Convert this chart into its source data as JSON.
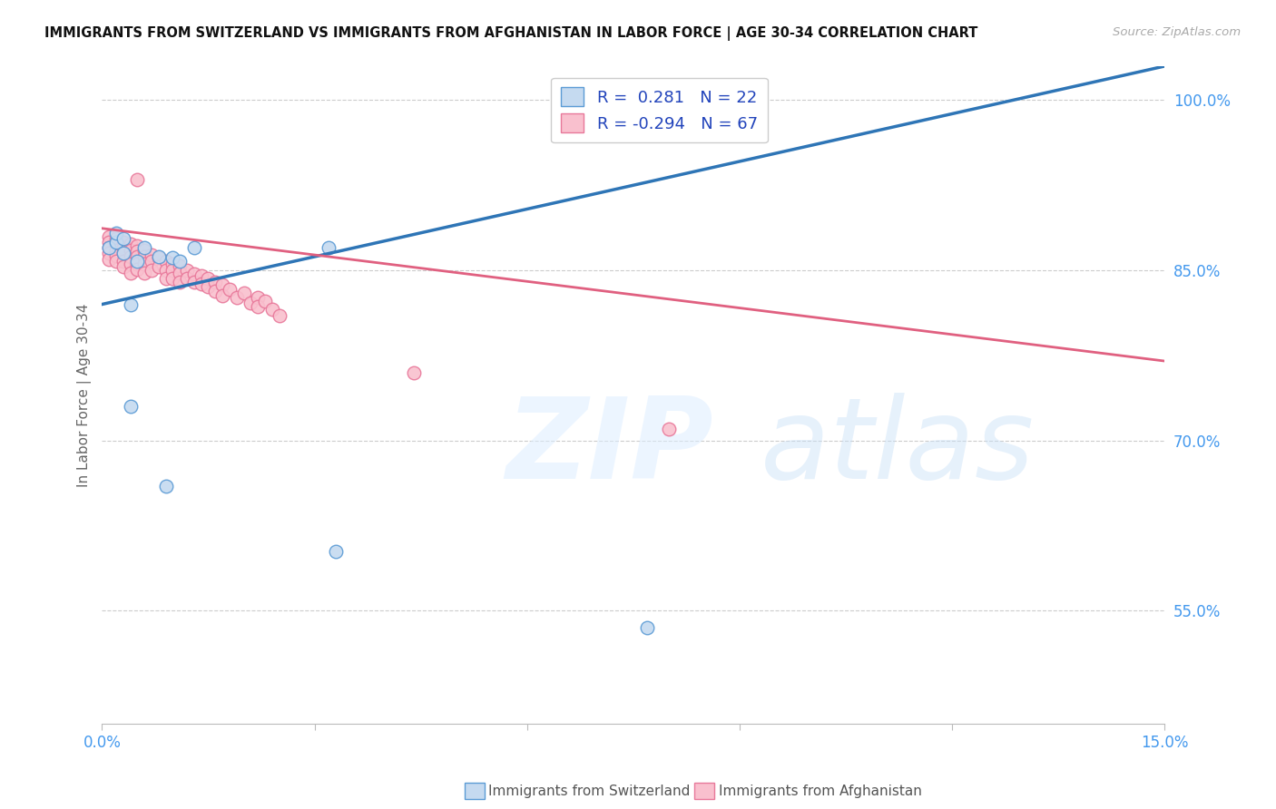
{
  "title": "IMMIGRANTS FROM SWITZERLAND VS IMMIGRANTS FROM AFGHANISTAN IN LABOR FORCE | AGE 30-34 CORRELATION CHART",
  "source": "Source: ZipAtlas.com",
  "ylabel": "In Labor Force | Age 30-34",
  "x_min": 0.0,
  "x_max": 0.15,
  "y_min": 0.45,
  "y_max": 1.03,
  "x_ticks": [
    0.0,
    0.03,
    0.06,
    0.09,
    0.12,
    0.15
  ],
  "y_ticks": [
    0.55,
    0.7,
    0.85,
    1.0
  ],
  "y_tick_labels": [
    "55.0%",
    "70.0%",
    "85.0%",
    "100.0%"
  ],
  "legend_R_swiss": "0.281",
  "legend_N_swiss": "22",
  "legend_R_afghan": "-0.294",
  "legend_N_afghan": "67",
  "swiss_color": "#c5daf0",
  "afghan_color": "#f9c0ce",
  "swiss_edge_color": "#5b9bd5",
  "afghan_edge_color": "#e8789a",
  "swiss_line_color": "#2e75b6",
  "afghan_line_color": "#e06080",
  "swiss_x": [
    0.001,
    0.002,
    0.002,
    0.003,
    0.003,
    0.004,
    0.004,
    0.005,
    0.006,
    0.008,
    0.009,
    0.01,
    0.011,
    0.013,
    0.032,
    0.033,
    0.074,
    0.074,
    0.075,
    0.076,
    0.076,
    0.077
  ],
  "swiss_y": [
    0.87,
    0.875,
    0.883,
    0.878,
    0.865,
    0.82,
    0.73,
    0.858,
    0.87,
    0.862,
    0.66,
    0.861,
    0.858,
    0.87,
    0.87,
    0.602,
    1.0,
    0.98,
    0.99,
    1.0,
    0.975,
    0.535
  ],
  "afghan_x": [
    0.001,
    0.001,
    0.001,
    0.001,
    0.001,
    0.002,
    0.002,
    0.002,
    0.002,
    0.002,
    0.003,
    0.003,
    0.003,
    0.003,
    0.003,
    0.004,
    0.004,
    0.004,
    0.004,
    0.004,
    0.005,
    0.005,
    0.005,
    0.005,
    0.005,
    0.005,
    0.006,
    0.006,
    0.006,
    0.006,
    0.007,
    0.007,
    0.007,
    0.008,
    0.008,
    0.009,
    0.009,
    0.009,
    0.01,
    0.01,
    0.01,
    0.011,
    0.011,
    0.011,
    0.012,
    0.012,
    0.013,
    0.013,
    0.014,
    0.014,
    0.015,
    0.015,
    0.016,
    0.016,
    0.017,
    0.017,
    0.018,
    0.019,
    0.02,
    0.021,
    0.022,
    0.022,
    0.023,
    0.024,
    0.025,
    0.044,
    0.08
  ],
  "afghan_y": [
    0.88,
    0.875,
    0.87,
    0.865,
    0.86,
    0.878,
    0.873,
    0.868,
    0.863,
    0.858,
    0.875,
    0.87,
    0.865,
    0.858,
    0.853,
    0.873,
    0.868,
    0.862,
    0.856,
    0.848,
    0.872,
    0.867,
    0.862,
    0.856,
    0.851,
    0.93,
    0.868,
    0.862,
    0.856,
    0.848,
    0.864,
    0.858,
    0.85,
    0.861,
    0.853,
    0.858,
    0.85,
    0.843,
    0.856,
    0.85,
    0.843,
    0.854,
    0.848,
    0.84,
    0.85,
    0.843,
    0.847,
    0.84,
    0.845,
    0.838,
    0.843,
    0.836,
    0.84,
    0.832,
    0.837,
    0.828,
    0.833,
    0.826,
    0.83,
    0.821,
    0.826,
    0.818,
    0.823,
    0.816,
    0.81,
    0.76,
    0.71
  ],
  "swiss_line_x0": 0.0,
  "swiss_line_y0": 0.82,
  "swiss_line_x1": 0.15,
  "swiss_line_y1": 1.03,
  "afghan_line_x0": 0.0,
  "afghan_line_y0": 0.887,
  "afghan_line_x1": 0.15,
  "afghan_line_y1": 0.77
}
